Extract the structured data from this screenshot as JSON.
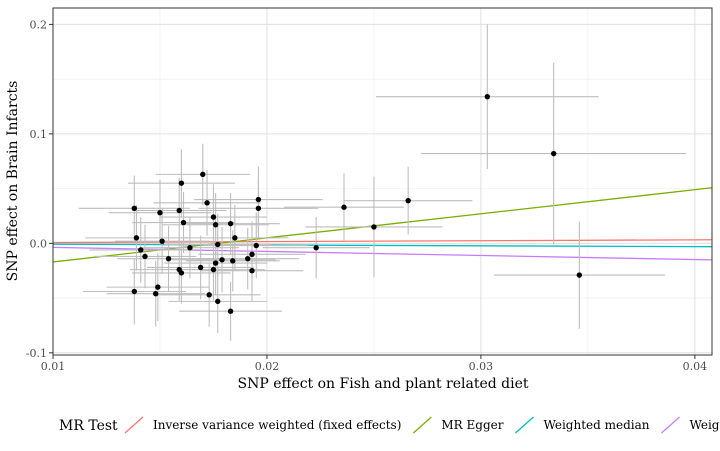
{
  "chart_data": {
    "type": "scatter",
    "xlabel": "SNP effect on Fish and plant related diet",
    "ylabel": "SNP effect on Brain Infarcts",
    "xlim": [
      0.01,
      0.0408
    ],
    "ylim": [
      -0.102,
      0.215
    ],
    "x_ticks": [
      0.01,
      0.02,
      0.03,
      0.04
    ],
    "x_tick_labels": [
      "0.01",
      "0.02",
      "0.03",
      "0.04"
    ],
    "y_ticks": [
      -0.1,
      0.0,
      0.1,
      0.2
    ],
    "y_tick_labels": [
      "-0.1",
      "0.0",
      "0.1",
      "0.2"
    ],
    "grid": true,
    "points": [
      {
        "x": 0.0303,
        "y": 0.134,
        "xerr": 0.0052,
        "yerr": 0.066
      },
      {
        "x": 0.0334,
        "y": 0.082,
        "xerr": 0.0062,
        "yerr": 0.083
      },
      {
        "x": 0.0346,
        "y": -0.029,
        "xerr": 0.004,
        "yerr": 0.049
      },
      {
        "x": 0.0266,
        "y": 0.039,
        "xerr": 0.003,
        "yerr": 0.031
      },
      {
        "x": 0.025,
        "y": 0.015,
        "xerr": 0.0032,
        "yerr": 0.046
      },
      {
        "x": 0.0236,
        "y": 0.033,
        "xerr": 0.0028,
        "yerr": 0.031
      },
      {
        "x": 0.0223,
        "y": -0.004,
        "xerr": 0.0025,
        "yerr": 0.028
      },
      {
        "x": 0.017,
        "y": 0.063,
        "xerr": 0.0022,
        "yerr": 0.028
      },
      {
        "x": 0.016,
        "y": 0.055,
        "xerr": 0.0025,
        "yerr": 0.031
      },
      {
        "x": 0.0196,
        "y": 0.04,
        "xerr": 0.003,
        "yerr": 0.03
      },
      {
        "x": 0.0196,
        "y": 0.032,
        "xerr": 0.0028,
        "yerr": 0.027
      },
      {
        "x": 0.0172,
        "y": 0.037,
        "xerr": 0.0025,
        "yerr": 0.03
      },
      {
        "x": 0.0138,
        "y": 0.032,
        "xerr": 0.0026,
        "yerr": 0.03
      },
      {
        "x": 0.015,
        "y": 0.028,
        "xerr": 0.0024,
        "yerr": 0.03
      },
      {
        "x": 0.0159,
        "y": 0.03,
        "xerr": 0.0022,
        "yerr": 0.03
      },
      {
        "x": 0.0175,
        "y": 0.024,
        "xerr": 0.0025,
        "yerr": 0.03
      },
      {
        "x": 0.0161,
        "y": 0.019,
        "xerr": 0.0024,
        "yerr": 0.028
      },
      {
        "x": 0.0176,
        "y": 0.017,
        "xerr": 0.0025,
        "yerr": 0.029
      },
      {
        "x": 0.0183,
        "y": 0.018,
        "xerr": 0.0023,
        "yerr": 0.028
      },
      {
        "x": 0.0185,
        "y": 0.005,
        "xerr": 0.0025,
        "yerr": 0.03
      },
      {
        "x": 0.0139,
        "y": 0.005,
        "xerr": 0.0024,
        "yerr": 0.03
      },
      {
        "x": 0.0151,
        "y": 0.002,
        "xerr": 0.0022,
        "yerr": 0.03
      },
      {
        "x": 0.0177,
        "y": -0.001,
        "xerr": 0.0025,
        "yerr": 0.028
      },
      {
        "x": 0.0195,
        "y": -0.002,
        "xerr": 0.0024,
        "yerr": 0.03
      },
      {
        "x": 0.0164,
        "y": -0.004,
        "xerr": 0.0023,
        "yerr": 0.028
      },
      {
        "x": 0.0141,
        "y": -0.006,
        "xerr": 0.0024,
        "yerr": 0.03
      },
      {
        "x": 0.0193,
        "y": -0.01,
        "xerr": 0.0025,
        "yerr": 0.03
      },
      {
        "x": 0.0143,
        "y": -0.012,
        "xerr": 0.0024,
        "yerr": 0.029
      },
      {
        "x": 0.0191,
        "y": -0.014,
        "xerr": 0.0024,
        "yerr": 0.028
      },
      {
        "x": 0.0154,
        "y": -0.014,
        "xerr": 0.0024,
        "yerr": 0.03
      },
      {
        "x": 0.0179,
        "y": -0.015,
        "xerr": 0.0025,
        "yerr": 0.03
      },
      {
        "x": 0.0184,
        "y": -0.016,
        "xerr": 0.0022,
        "yerr": 0.028
      },
      {
        "x": 0.0176,
        "y": -0.018,
        "xerr": 0.0024,
        "yerr": 0.029
      },
      {
        "x": 0.0169,
        "y": -0.022,
        "xerr": 0.0025,
        "yerr": 0.029
      },
      {
        "x": 0.0175,
        "y": -0.024,
        "xerr": 0.0024,
        "yerr": 0.028
      },
      {
        "x": 0.0159,
        "y": -0.024,
        "xerr": 0.0023,
        "yerr": 0.029
      },
      {
        "x": 0.0193,
        "y": -0.025,
        "xerr": 0.0024,
        "yerr": 0.028
      },
      {
        "x": 0.016,
        "y": -0.027,
        "xerr": 0.0023,
        "yerr": 0.028
      },
      {
        "x": 0.0149,
        "y": -0.04,
        "xerr": 0.0024,
        "yerr": 0.031
      },
      {
        "x": 0.0138,
        "y": -0.044,
        "xerr": 0.0024,
        "yerr": 0.03
      },
      {
        "x": 0.0148,
        "y": -0.046,
        "xerr": 0.0023,
        "yerr": 0.03
      },
      {
        "x": 0.0173,
        "y": -0.047,
        "xerr": 0.0024,
        "yerr": 0.029
      },
      {
        "x": 0.0177,
        "y": -0.053,
        "xerr": 0.0023,
        "yerr": 0.029
      },
      {
        "x": 0.0183,
        "y": -0.062,
        "xerr": 0.0024,
        "yerr": 0.027
      }
    ],
    "series": [
      {
        "name": "Inverse variance weighted (fixed effects)",
        "color": "#F8766D",
        "intercept": 0,
        "slope": 0.08
      },
      {
        "name": "MR Egger",
        "color": "#7CAE00",
        "intercept": -0.039,
        "slope": 2.2
      },
      {
        "name": "Weighted median",
        "color": "#00BFC4",
        "intercept": 0,
        "slope": -0.075
      },
      {
        "name": "Weighted mode",
        "color": "#C77CFF",
        "intercept": 0,
        "slope": -0.37
      }
    ],
    "legend": {
      "title": "MR Test",
      "position": "bottom"
    }
  }
}
